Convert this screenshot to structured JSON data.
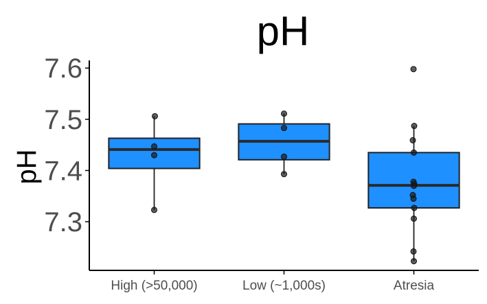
{
  "chart_data": {
    "type": "boxplot",
    "title": "pH",
    "xlabel": "",
    "ylabel": "pH",
    "ylim": [
      7.205,
      7.615
    ],
    "yticks": [
      7.3,
      7.4,
      7.5,
      7.6
    ],
    "ytick_labels": [
      "7.3",
      "7.4",
      "7.5",
      "7.6"
    ],
    "categories": [
      "High (>50,000)",
      "Low (~1,000s)",
      "Atresia"
    ],
    "box_color": "#1e90ff",
    "point_color": "#1a1a1a",
    "grid": false,
    "legend": "none",
    "boxes": [
      {
        "category": "High (>50,000)",
        "min": 7.323,
        "q1": 7.404,
        "median": 7.441,
        "q3": 7.463,
        "max": 7.506
      },
      {
        "category": "Low (~1,000s)",
        "min": 7.393,
        "q1": 7.421,
        "median": 7.457,
        "q3": 7.491,
        "max": 7.511
      },
      {
        "category": "Atresia",
        "min": 7.223,
        "q1": 7.327,
        "median": 7.371,
        "q3": 7.435,
        "max": 7.487,
        "outliers": [
          7.598
        ]
      }
    ],
    "points": [
      {
        "category": "High (>50,000)",
        "values": [
          7.506,
          7.447,
          7.43,
          7.323
        ]
      },
      {
        "category": "Low (~1,000s)",
        "values": [
          7.511,
          7.483,
          7.427,
          7.393
        ]
      },
      {
        "category": "Atresia",
        "values": [
          7.598,
          7.487,
          7.459,
          7.435,
          7.378,
          7.374,
          7.37,
          7.352,
          7.345,
          7.327,
          7.306,
          7.242,
          7.223
        ]
      }
    ]
  }
}
